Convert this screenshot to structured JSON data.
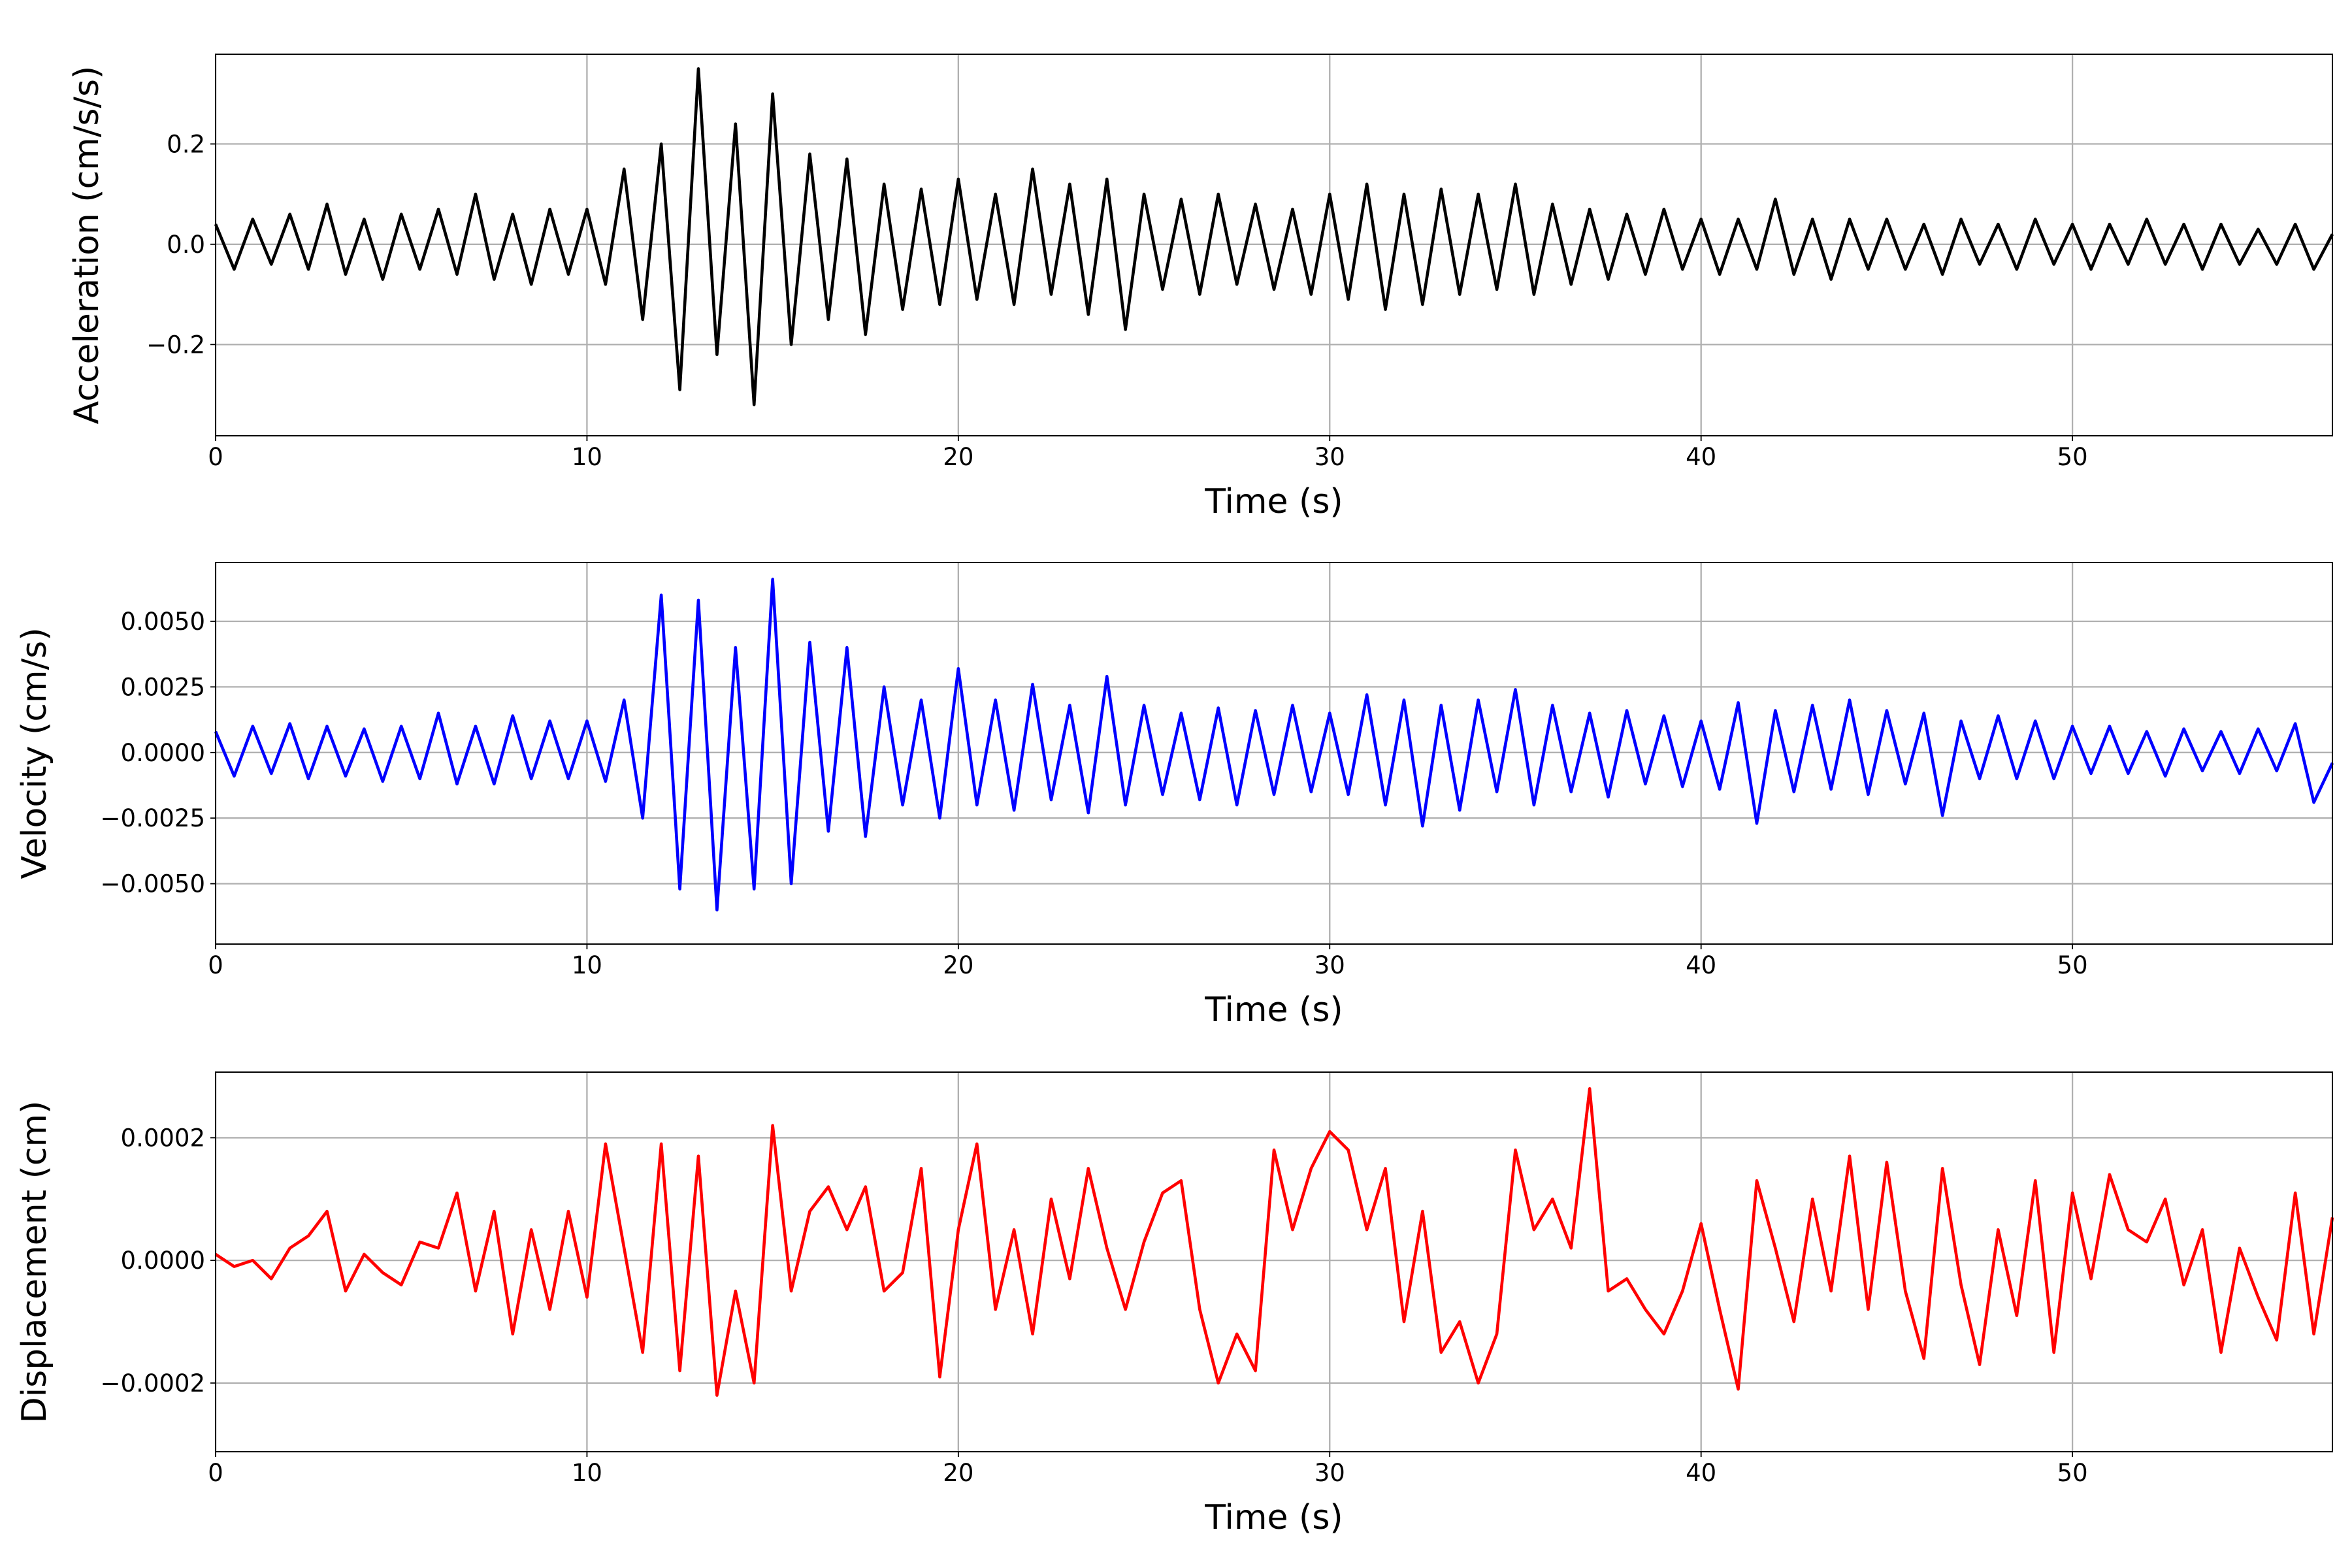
{
  "chart_data": [
    {
      "type": "line",
      "xlabel": "Time (s)",
      "ylabel": "Acceleration (cm/s/s)",
      "color": "#000000",
      "grid": true,
      "xlim": [
        0,
        57
      ],
      "xticks": [
        0,
        10,
        20,
        30,
        40,
        50
      ],
      "ylim": [
        -0.382,
        0.379
      ],
      "yticks": [
        {
          "value": -0.2,
          "label": "−0.2"
        },
        {
          "value": 0,
          "label": "0.0"
        },
        {
          "value": 0.2,
          "label": "0.2"
        }
      ],
      "x": [
        0,
        0.5,
        1,
        1.5,
        2,
        2.5,
        3,
        3.5,
        4,
        4.5,
        5,
        5.5,
        6,
        6.5,
        7,
        7.5,
        8,
        8.5,
        9,
        9.5,
        10,
        10.5,
        11,
        11.5,
        12,
        12.5,
        13,
        13.5,
        14,
        14.5,
        15,
        15.5,
        16,
        16.5,
        17,
        17.5,
        18,
        18.5,
        19,
        19.5,
        20,
        20.5,
        21,
        21.5,
        22,
        22.5,
        23,
        23.5,
        24,
        24.5,
        25,
        25.5,
        26,
        26.5,
        27,
        27.5,
        28,
        28.5,
        29,
        29.5,
        30,
        30.5,
        31,
        31.5,
        32,
        32.5,
        33,
        33.5,
        34,
        34.5,
        35,
        35.5,
        36,
        36.5,
        37,
        37.5,
        38,
        38.5,
        39,
        39.5,
        40,
        40.5,
        41,
        41.5,
        42,
        42.5,
        43,
        43.5,
        44,
        44.5,
        45,
        45.5,
        46,
        46.5,
        47,
        47.5,
        48,
        48.5,
        49,
        49.5,
        50,
        50.5,
        51,
        51.5,
        52,
        52.5,
        53,
        53.5,
        54,
        54.5,
        55,
        55.5,
        56,
        56.5,
        57
      ],
      "values": [
        0.04,
        -0.05,
        0.05,
        -0.04,
        0.06,
        -0.05,
        0.08,
        -0.06,
        0.05,
        -0.07,
        0.06,
        -0.05,
        0.07,
        -0.06,
        0.1,
        -0.07,
        0.06,
        -0.08,
        0.07,
        -0.06,
        0.07,
        -0.08,
        0.15,
        -0.15,
        0.2,
        -0.29,
        0.35,
        -0.22,
        0.24,
        -0.32,
        0.3,
        -0.2,
        0.18,
        -0.15,
        0.17,
        -0.18,
        0.12,
        -0.13,
        0.11,
        -0.12,
        0.13,
        -0.11,
        0.1,
        -0.12,
        0.15,
        -0.1,
        0.12,
        -0.14,
        0.13,
        -0.17,
        0.1,
        -0.09,
        0.09,
        -0.1,
        0.1,
        -0.08,
        0.08,
        -0.09,
        0.07,
        -0.1,
        0.1,
        -0.11,
        0.12,
        -0.13,
        0.1,
        -0.12,
        0.11,
        -0.1,
        0.1,
        -0.09,
        0.12,
        -0.1,
        0.08,
        -0.08,
        0.07,
        -0.07,
        0.06,
        -0.06,
        0.07,
        -0.05,
        0.05,
        -0.06,
        0.05,
        -0.05,
        0.09,
        -0.06,
        0.05,
        -0.07,
        0.05,
        -0.05,
        0.05,
        -0.05,
        0.04,
        -0.06,
        0.05,
        -0.04,
        0.04,
        -0.05,
        0.05,
        -0.04,
        0.04,
        -0.05,
        0.04,
        -0.04,
        0.05,
        -0.04,
        0.04,
        -0.05,
        0.04,
        -0.04,
        0.03,
        -0.04,
        0.04,
        -0.05,
        0.02
      ]
    },
    {
      "type": "line",
      "xlabel": "Time (s)",
      "ylabel": "Velocity (cm/s)",
      "color": "#0000ff",
      "grid": true,
      "xlim": [
        0,
        57
      ],
      "xticks": [
        0,
        10,
        20,
        30,
        40,
        50
      ],
      "ylim": [
        -0.0073,
        0.00724
      ],
      "yticks": [
        {
          "value": -0.005,
          "label": "−0.0050"
        },
        {
          "value": -0.0025,
          "label": "−0.0025"
        },
        {
          "value": 0,
          "label": "0.0000"
        },
        {
          "value": 0.0025,
          "label": "0.0025"
        },
        {
          "value": 0.005,
          "label": "0.0050"
        }
      ],
      "x": [
        0,
        0.5,
        1,
        1.5,
        2,
        2.5,
        3,
        3.5,
        4,
        4.5,
        5,
        5.5,
        6,
        6.5,
        7,
        7.5,
        8,
        8.5,
        9,
        9.5,
        10,
        10.5,
        11,
        11.5,
        12,
        12.5,
        13,
        13.5,
        14,
        14.5,
        15,
        15.5,
        16,
        16.5,
        17,
        17.5,
        18,
        18.5,
        19,
        19.5,
        20,
        20.5,
        21,
        21.5,
        22,
        22.5,
        23,
        23.5,
        24,
        24.5,
        25,
        25.5,
        26,
        26.5,
        27,
        27.5,
        28,
        28.5,
        29,
        29.5,
        30,
        30.5,
        31,
        31.5,
        32,
        32.5,
        33,
        33.5,
        34,
        34.5,
        35,
        35.5,
        36,
        36.5,
        37,
        37.5,
        38,
        38.5,
        39,
        39.5,
        40,
        40.5,
        41,
        41.5,
        42,
        42.5,
        43,
        43.5,
        44,
        44.5,
        45,
        45.5,
        46,
        46.5,
        47,
        47.5,
        48,
        48.5,
        49,
        49.5,
        50,
        50.5,
        51,
        51.5,
        52,
        52.5,
        53,
        53.5,
        54,
        54.5,
        55,
        55.5,
        56,
        56.5,
        57
      ],
      "values": [
        0.0008,
        -0.0009,
        0.001,
        -0.0008,
        0.0011,
        -0.001,
        0.001,
        -0.0009,
        0.0009,
        -0.0011,
        0.001,
        -0.001,
        0.0015,
        -0.0012,
        0.001,
        -0.0012,
        0.0014,
        -0.001,
        0.0012,
        -0.001,
        0.0012,
        -0.0011,
        0.002,
        -0.0025,
        0.006,
        -0.0052,
        0.0058,
        -0.006,
        0.004,
        -0.0052,
        0.0066,
        -0.005,
        0.0042,
        -0.003,
        0.004,
        -0.0032,
        0.0025,
        -0.002,
        0.002,
        -0.0025,
        0.0032,
        -0.002,
        0.002,
        -0.0022,
        0.0026,
        -0.0018,
        0.0018,
        -0.0023,
        0.0029,
        -0.002,
        0.0018,
        -0.0016,
        0.0015,
        -0.0018,
        0.0017,
        -0.002,
        0.0016,
        -0.0016,
        0.0018,
        -0.0015,
        0.0015,
        -0.0016,
        0.0022,
        -0.002,
        0.002,
        -0.0028,
        0.0018,
        -0.0022,
        0.002,
        -0.0015,
        0.0024,
        -0.002,
        0.0018,
        -0.0015,
        0.0015,
        -0.0017,
        0.0016,
        -0.0012,
        0.0014,
        -0.0013,
        0.0012,
        -0.0014,
        0.0019,
        -0.0027,
        0.0016,
        -0.0015,
        0.0018,
        -0.0014,
        0.002,
        -0.0016,
        0.0016,
        -0.0012,
        0.0015,
        -0.0024,
        0.0012,
        -0.001,
        0.0014,
        -0.001,
        0.0012,
        -0.001,
        0.001,
        -0.0008,
        0.001,
        -0.0008,
        0.0008,
        -0.0009,
        0.0009,
        -0.0007,
        0.0008,
        -0.0008,
        0.0009,
        -0.0007,
        0.0011,
        -0.0019,
        -0.0004
      ]
    },
    {
      "type": "line",
      "xlabel": "Time (s)",
      "ylabel": "Displacement (cm)",
      "color": "#ff0000",
      "grid": true,
      "xlim": [
        0,
        57
      ],
      "xticks": [
        0,
        10,
        20,
        30,
        40,
        50
      ],
      "ylim": [
        -0.000312,
        0.000307
      ],
      "yticks": [
        {
          "value": -0.0002,
          "label": "−0.0002"
        },
        {
          "value": 0,
          "label": "0.0000"
        },
        {
          "value": 0.0002,
          "label": "0.0002"
        }
      ],
      "x": [
        0,
        0.5,
        1,
        1.5,
        2,
        2.5,
        3,
        3.5,
        4,
        4.5,
        5,
        5.5,
        6,
        6.5,
        7,
        7.5,
        8,
        8.5,
        9,
        9.5,
        10,
        10.5,
        11,
        11.5,
        12,
        12.5,
        13,
        13.5,
        14,
        14.5,
        15,
        15.5,
        16,
        16.5,
        17,
        17.5,
        18,
        18.5,
        19,
        19.5,
        20,
        20.5,
        21,
        21.5,
        22,
        22.5,
        23,
        23.5,
        24,
        24.5,
        25,
        25.5,
        26,
        26.5,
        27,
        27.5,
        28,
        28.5,
        29,
        29.5,
        30,
        30.5,
        31,
        31.5,
        32,
        32.5,
        33,
        33.5,
        34,
        34.5,
        35,
        35.5,
        36,
        36.5,
        37,
        37.5,
        38,
        38.5,
        39,
        39.5,
        40,
        40.5,
        41,
        41.5,
        42,
        42.5,
        43,
        43.5,
        44,
        44.5,
        45,
        45.5,
        46,
        46.5,
        47,
        47.5,
        48,
        48.5,
        49,
        49.5,
        50,
        50.5,
        51,
        51.5,
        52,
        52.5,
        53,
        53.5,
        54,
        54.5,
        55,
        55.5,
        56,
        56.5,
        57
      ],
      "values": [
        1e-05,
        -1e-05,
        0,
        -3e-05,
        2e-05,
        4e-05,
        8e-05,
        -5e-05,
        1e-05,
        -2e-05,
        -4e-05,
        3e-05,
        2e-05,
        0.00011,
        -5e-05,
        8e-05,
        -0.00012,
        5e-05,
        -8e-05,
        8e-05,
        -6e-05,
        0.00019,
        2e-05,
        -0.00015,
        0.00019,
        -0.00018,
        0.00017,
        -0.00022,
        -5e-05,
        -0.0002,
        0.00022,
        -5e-05,
        8e-05,
        0.00012,
        5e-05,
        0.00012,
        -5e-05,
        -2e-05,
        0.00015,
        -0.00019,
        5e-05,
        0.00019,
        -8e-05,
        5e-05,
        -0.00012,
        0.0001,
        -3e-05,
        0.00015,
        2e-05,
        -8e-05,
        3e-05,
        0.00011,
        0.00013,
        -8e-05,
        -0.0002,
        -0.00012,
        -0.00018,
        0.00018,
        5e-05,
        0.00015,
        0.00021,
        0.00018,
        5e-05,
        0.00015,
        -0.0001,
        8e-05,
        -0.00015,
        -0.0001,
        -0.0002,
        -0.00012,
        0.00018,
        5e-05,
        0.0001,
        2e-05,
        0.00028,
        -5e-05,
        -3e-05,
        -8e-05,
        -0.00012,
        -5e-05,
        6e-05,
        -8e-05,
        -0.00021,
        0.00013,
        2e-05,
        -0.0001,
        0.0001,
        -5e-05,
        0.00017,
        -8e-05,
        0.00016,
        -5e-05,
        -0.00016,
        0.00015,
        -4e-05,
        -0.00017,
        5e-05,
        -9e-05,
        0.00013,
        -0.00015,
        0.00011,
        -3e-05,
        0.00014,
        5e-05,
        3e-05,
        0.0001,
        -4e-05,
        5e-05,
        -0.00015,
        2e-05,
        -6e-05,
        -0.00013,
        0.00011,
        -0.00012,
        7e-05
      ]
    }
  ]
}
